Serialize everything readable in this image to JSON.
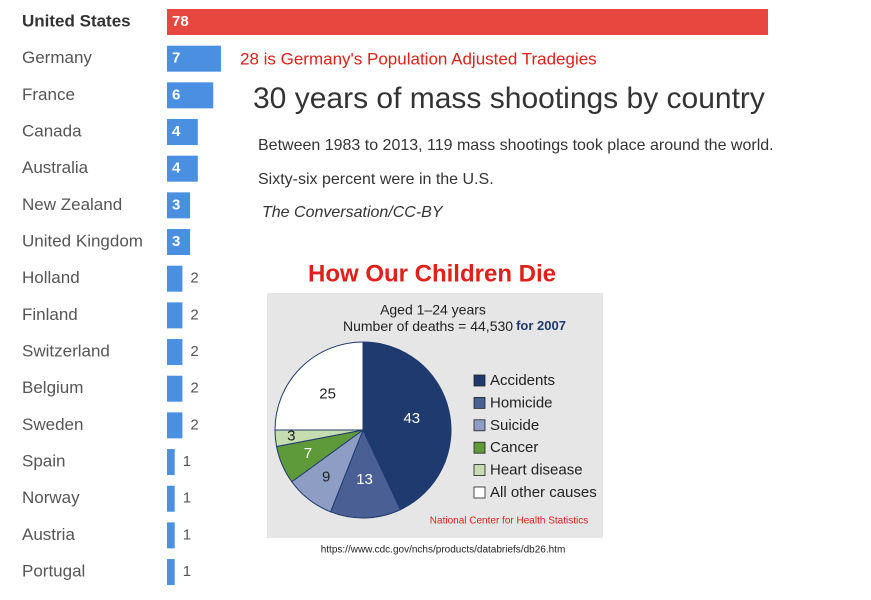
{
  "chart_data": [
    {
      "type": "bar",
      "title": "30 years of mass shootings by country",
      "subtitle": [
        "Between 1983 to 2013, 119 mass shootings took place around the world.",
        "Sixty-six percent were in the U.S."
      ],
      "source": "The Conversation/CC-BY",
      "annotation": "28 is Germany's Population Adjusted Tradegies",
      "categories": [
        "United States",
        "Germany",
        "France",
        "Canada",
        "Australia",
        "New Zealand",
        "United Kingdom",
        "Holland",
        "Finland",
        "Switzerland",
        "Belgium",
        "Sweden",
        "Spain",
        "Norway",
        "Austria",
        "Portugal"
      ],
      "values": [
        78,
        7,
        6,
        4,
        4,
        3,
        3,
        2,
        2,
        2,
        2,
        2,
        1,
        1,
        1,
        1
      ],
      "colors": [
        "#e8473f",
        "#4a8fe0",
        "#4a8fe0",
        "#4a8fe0",
        "#4a8fe0",
        "#4a8fe0",
        "#4a8fe0",
        "#4a8fe0",
        "#4a8fe0",
        "#4a8fe0",
        "#4a8fe0",
        "#4a8fe0",
        "#4a8fe0",
        "#4a8fe0",
        "#4a8fe0",
        "#4a8fe0"
      ],
      "xlim": [
        0,
        78
      ]
    },
    {
      "type": "pie",
      "title": "How Our Children Die",
      "subtitle": [
        "Aged 1–24 years",
        "Number of deaths = 44,530",
        "for 2007"
      ],
      "source": "National Center for Health Statistics",
      "url": "https://www.cdc.gov/nchs/products/databriefs/db26.htm",
      "categories": [
        "Accidents",
        "Homicide",
        "Suicide",
        "Cancer",
        "Heart disease",
        "All other causes"
      ],
      "values": [
        43,
        13,
        9,
        7,
        3,
        25
      ],
      "colors": [
        "#1f3a6e",
        "#4a5f94",
        "#8d9dc4",
        "#5e9a3a",
        "#c6ddb0",
        "#ffffff"
      ]
    }
  ]
}
